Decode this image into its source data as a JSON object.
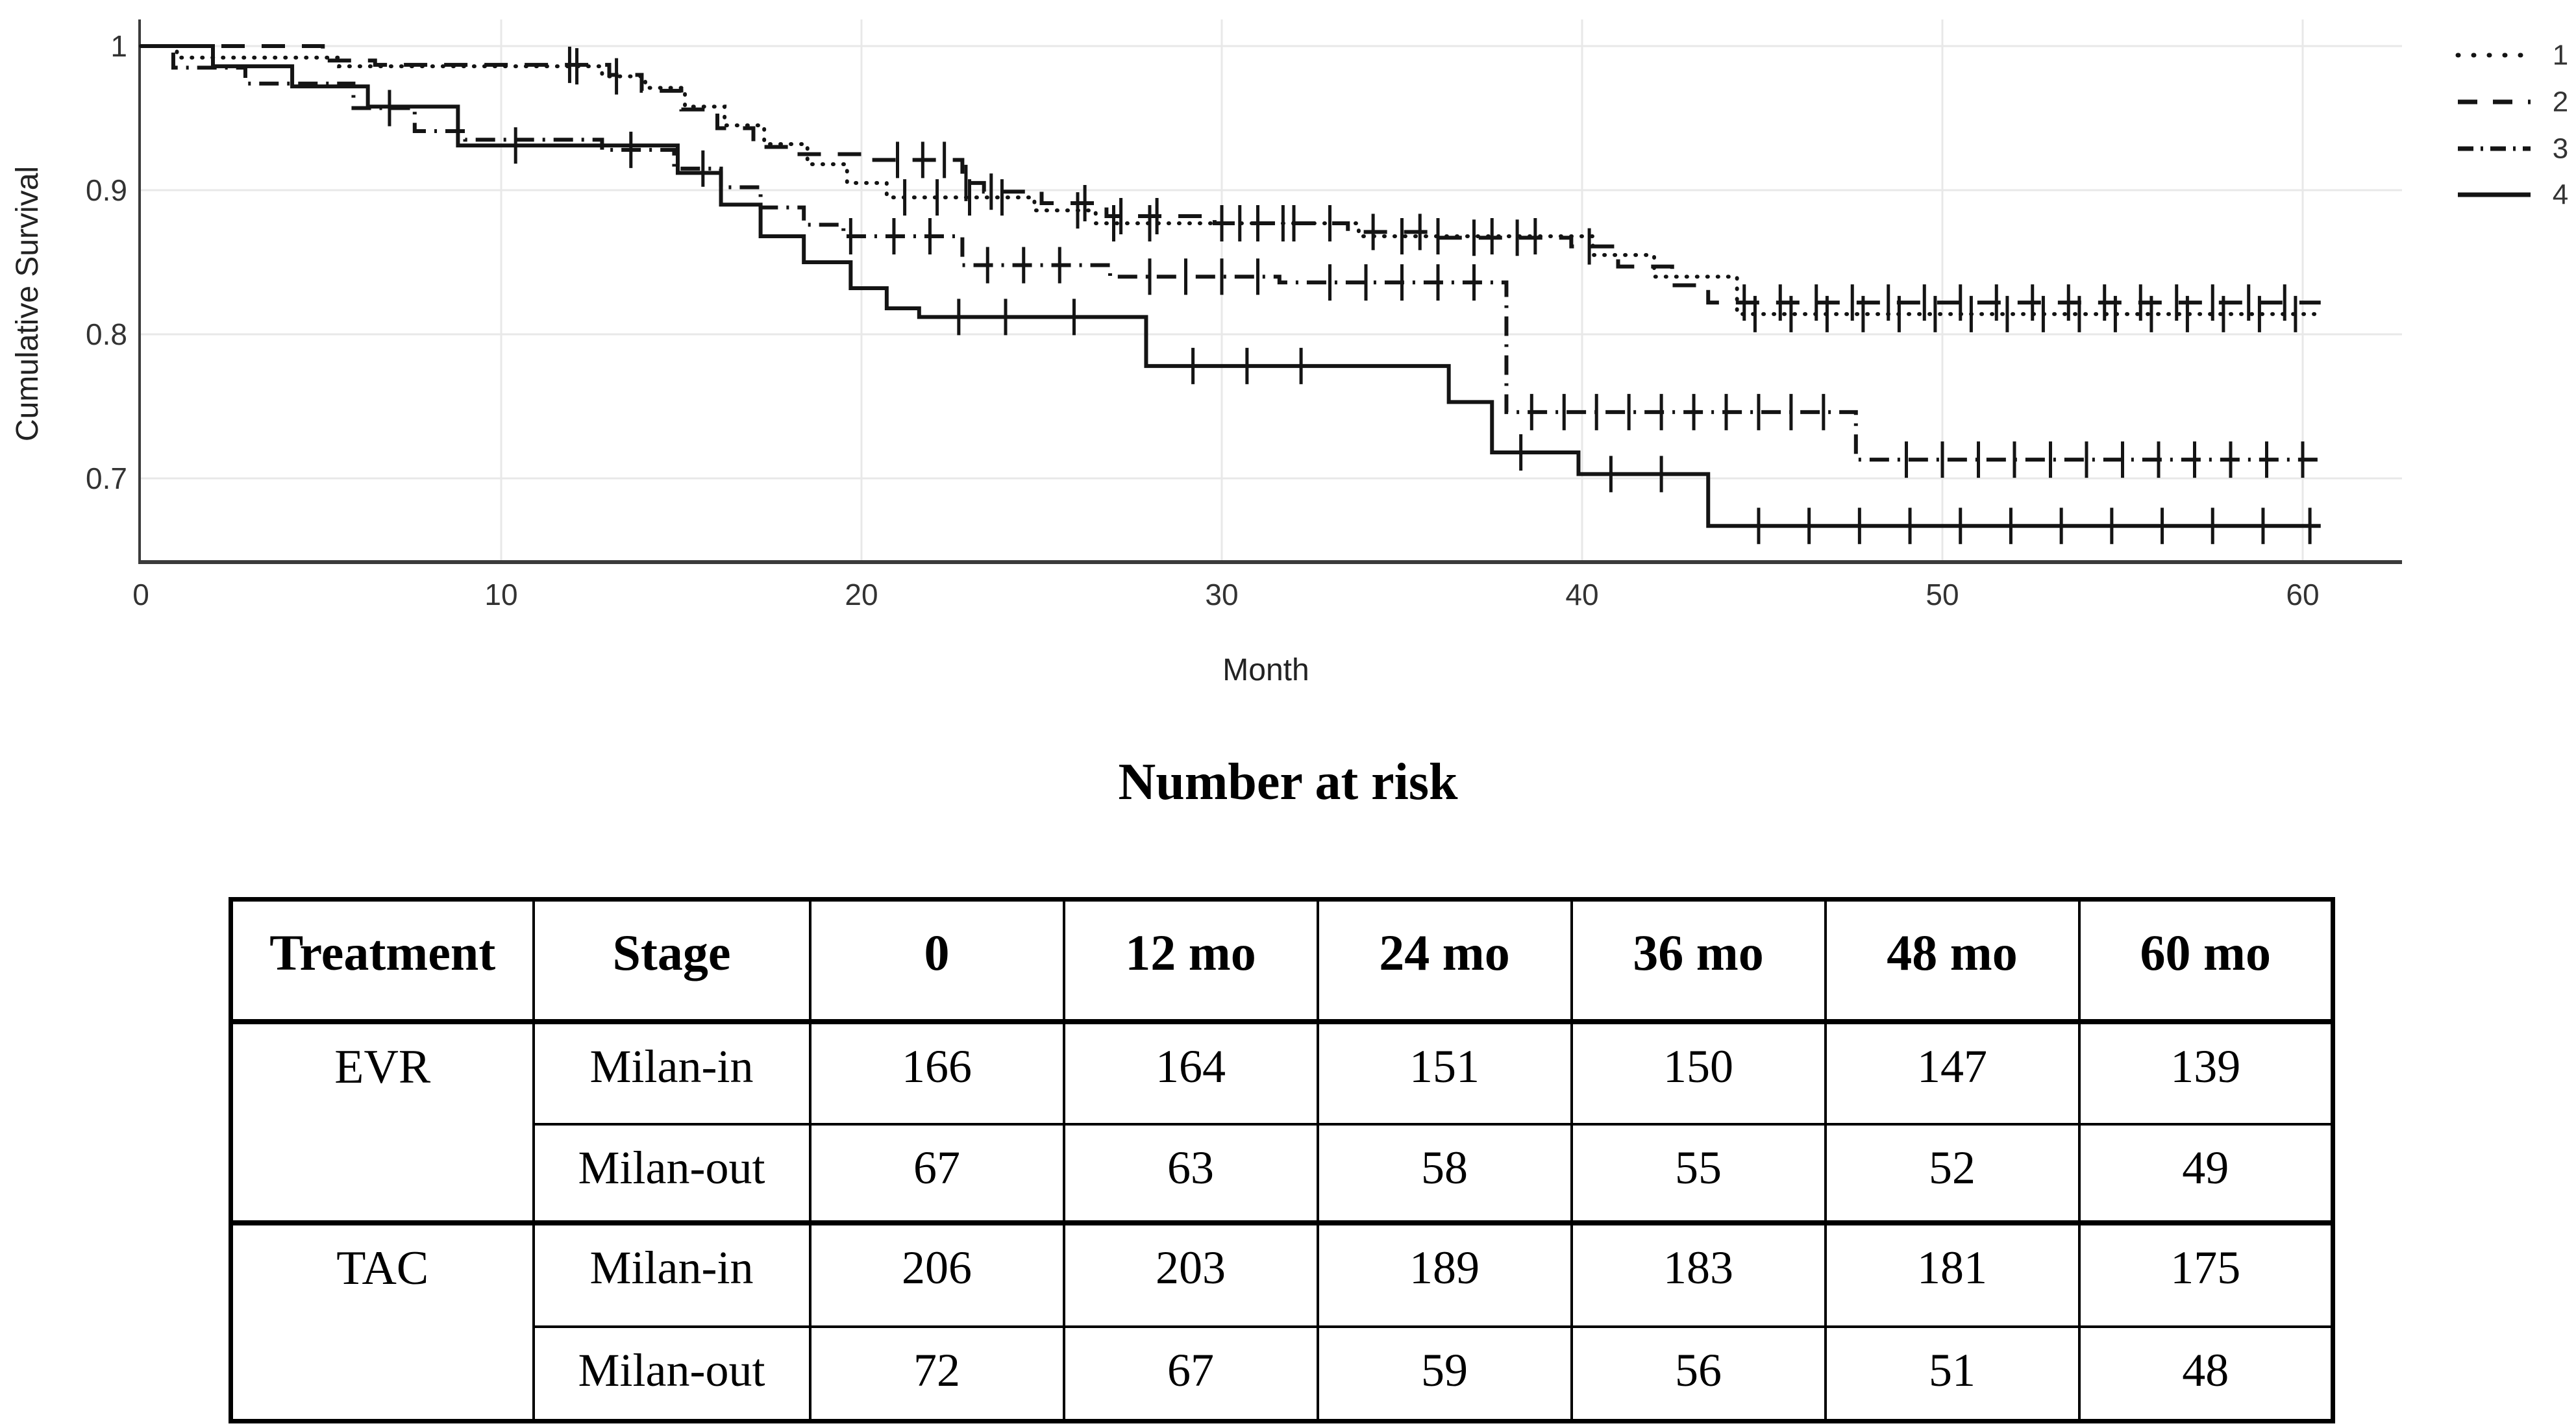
{
  "chart_data": {
    "type": "line",
    "subtype": "kaplan-meier-step-curves",
    "title": "",
    "xlabel": "Month",
    "ylabel": "Cumulative Survival",
    "xlim": [
      0,
      63
    ],
    "ylim": [
      0.64,
      1.01
    ],
    "grid": true,
    "legend_position": "top-right",
    "x_end": 60.5,
    "xticks": [
      {
        "value": 0,
        "label": "0"
      },
      {
        "value": 10,
        "label": "10"
      },
      {
        "value": 20,
        "label": "20"
      },
      {
        "value": 30,
        "label": "30"
      },
      {
        "value": 40,
        "label": "40"
      },
      {
        "value": 50,
        "label": "50"
      },
      {
        "value": 60,
        "label": "60"
      }
    ],
    "yticks": [
      {
        "value": 1.0,
        "label": "1"
      },
      {
        "value": 0.9,
        "label": "0.9"
      },
      {
        "value": 0.8,
        "label": "0.8"
      },
      {
        "value": 0.7,
        "label": "0.7"
      }
    ],
    "colors": {
      "line": "#141414",
      "grid": "#e8e8e8",
      "axis": "#3b3b3b",
      "tick_text": "#333333",
      "label_text": "#222222"
    },
    "series": [
      {
        "name": "1",
        "style": "dotted",
        "steps": [
          [
            0,
            1
          ],
          [
            1,
            0.992
          ],
          [
            5.5,
            0.986
          ],
          [
            12.8,
            0.979
          ],
          [
            14,
            0.971
          ],
          [
            15.1,
            0.958
          ],
          [
            16.2,
            0.945
          ],
          [
            17.3,
            0.932
          ],
          [
            18.5,
            0.918
          ],
          [
            19.6,
            0.905
          ],
          [
            20.7,
            0.895
          ],
          [
            24.8,
            0.886
          ],
          [
            26.5,
            0.877
          ],
          [
            33.8,
            0.868
          ],
          [
            40.3,
            0.855
          ],
          [
            42,
            0.84
          ],
          [
            44.3,
            0.814
          ]
        ],
        "censor_marks": [
          12.1,
          13.2,
          21.2,
          22.1,
          23,
          23.9,
          26,
          27,
          28,
          30,
          31,
          32,
          33,
          35,
          36,
          37.5,
          38.7,
          44.8,
          45.8,
          46.8,
          47.8,
          48.8,
          49.8,
          50.8,
          51.8,
          52.8,
          53.8,
          54.8,
          55.8,
          56.8,
          57.8,
          58.8,
          59.8
        ]
      },
      {
        "name": "2",
        "style": "dashed",
        "steps": [
          [
            0,
            1
          ],
          [
            5.05,
            0.99
          ],
          [
            6.5,
            0.987
          ],
          [
            13,
            0.98
          ],
          [
            13.9,
            0.969
          ],
          [
            15,
            0.956
          ],
          [
            16,
            0.943
          ],
          [
            17,
            0.93
          ],
          [
            18.2,
            0.925
          ],
          [
            20,
            0.921
          ],
          [
            22.8,
            0.905
          ],
          [
            23.4,
            0.899
          ],
          [
            25,
            0.891
          ],
          [
            26.8,
            0.882
          ],
          [
            29.8,
            0.877
          ],
          [
            33.5,
            0.871
          ],
          [
            36,
            0.867
          ],
          [
            39.7,
            0.861
          ],
          [
            41,
            0.847
          ],
          [
            42.5,
            0.834
          ],
          [
            43.5,
            0.822
          ]
        ],
        "censor_marks": [
          11.9,
          21,
          21.7,
          22.3,
          22.9,
          23.6,
          26.2,
          27.2,
          28.2,
          30.5,
          31.7,
          34.2,
          35.5,
          37,
          38.2,
          40.2,
          44.5,
          45.5,
          46.5,
          47.5,
          48.5,
          49.5,
          50.5,
          51.5,
          52.5,
          53.5,
          54.5,
          55.5,
          56.5,
          57.5,
          58.5,
          59.5
        ]
      },
      {
        "name": "3",
        "style": "dashdot",
        "steps": [
          [
            0,
            1
          ],
          [
            0.9,
            0.985
          ],
          [
            2.9,
            0.974
          ],
          [
            5.9,
            0.957
          ],
          [
            7.6,
            0.941
          ],
          [
            9,
            0.935
          ],
          [
            12.8,
            0.928
          ],
          [
            14.8,
            0.915
          ],
          [
            16.1,
            0.902
          ],
          [
            17.2,
            0.888
          ],
          [
            18.4,
            0.876
          ],
          [
            19.5,
            0.868
          ],
          [
            22.8,
            0.848
          ],
          [
            26.9,
            0.84
          ],
          [
            31.6,
            0.836
          ],
          [
            37.9,
            0.746
          ],
          [
            47.6,
            0.713
          ]
        ],
        "censor_marks": [
          6.9,
          13.6,
          15.6,
          19.7,
          20.9,
          21.9,
          23.5,
          24.5,
          25.5,
          28,
          29,
          30,
          31,
          33,
          34,
          35,
          36,
          37,
          38.6,
          39.5,
          40.4,
          41.3,
          42.2,
          43.1,
          44,
          44.9,
          45.8,
          46.7,
          49,
          50,
          51,
          52,
          53,
          54,
          55,
          56,
          57,
          58,
          59,
          60
        ]
      },
      {
        "name": "4",
        "style": "solid",
        "steps": [
          [
            0,
            1
          ],
          [
            2,
            0.986
          ],
          [
            4.2,
            0.972
          ],
          [
            6.3,
            0.958
          ],
          [
            8.8,
            0.931
          ],
          [
            14.9,
            0.912
          ],
          [
            16.1,
            0.89
          ],
          [
            17.2,
            0.868
          ],
          [
            18.4,
            0.85
          ],
          [
            19.7,
            0.832
          ],
          [
            20.7,
            0.818
          ],
          [
            21.6,
            0.812
          ],
          [
            27.9,
            0.778
          ],
          [
            36.3,
            0.753
          ],
          [
            37.5,
            0.718
          ],
          [
            39.9,
            0.703
          ],
          [
            43.5,
            0.667
          ]
        ],
        "censor_marks": [
          10.4,
          22.7,
          24,
          25.9,
          29.2,
          30.7,
          32.2,
          38.3,
          40.8,
          42.2,
          44.9,
          46.3,
          47.7,
          49.1,
          50.5,
          51.9,
          53.3,
          54.7,
          56.1,
          57.5,
          58.9,
          60.2
        ]
      }
    ]
  },
  "risk_table": {
    "title": "Number at risk",
    "columns": [
      "Treatment",
      "Stage",
      "0",
      "12 mo",
      "24 mo",
      "36 mo",
      "48 mo",
      "60 mo"
    ],
    "rows": [
      {
        "treatment": "EVR",
        "stage": "Milan-in",
        "values": [
          "166",
          "164",
          "151",
          "150",
          "147",
          "139"
        ]
      },
      {
        "treatment": "",
        "stage": "Milan-out",
        "values": [
          "67",
          "63",
          "58",
          "55",
          "52",
          "49"
        ]
      },
      {
        "treatment": "TAC",
        "stage": "Milan-in",
        "values": [
          "206",
          "203",
          "189",
          "183",
          "181",
          "175"
        ]
      },
      {
        "treatment": "",
        "stage": "Milan-out",
        "values": [
          "72",
          "67",
          "59",
          "56",
          "51",
          "48"
        ]
      }
    ]
  }
}
